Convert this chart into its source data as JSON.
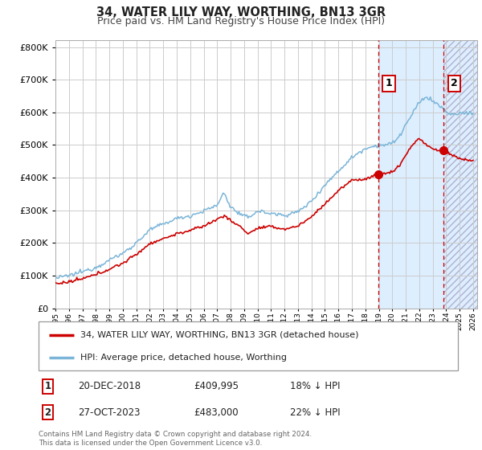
{
  "title": "34, WATER LILY WAY, WORTHING, BN13 3GR",
  "subtitle": "Price paid vs. HM Land Registry's House Price Index (HPI)",
  "hpi_label": "HPI: Average price, detached house, Worthing",
  "property_label": "34, WATER LILY WAY, WORTHING, BN13 3GR (detached house)",
  "annotation1": {
    "num": "1",
    "date": "20-DEC-2018",
    "price": "£409,995",
    "pct": "18% ↓ HPI",
    "x_year": 2018.97,
    "y_val": 409995
  },
  "annotation2": {
    "num": "2",
    "date": "27-OCT-2023",
    "price": "£483,000",
    "pct": "22% ↓ HPI",
    "x_year": 2023.82,
    "y_val": 483000
  },
  "hpi_color": "#7ab5d8",
  "property_color": "#cc0000",
  "dot_color": "#cc0000",
  "vline_color": "#cc0000",
  "shade_color": "#ddeeff",
  "grid_color": "#cccccc",
  "background_color": "#ffffff",
  "ylim": [
    0,
    820000
  ],
  "yticks": [
    0,
    100000,
    200000,
    300000,
    400000,
    500000,
    600000,
    700000,
    800000
  ],
  "xlim_start": 1995,
  "xlim_end": 2026.3,
  "footer": "Contains HM Land Registry data © Crown copyright and database right 2024.\nThis data is licensed under the Open Government Licence v3.0.",
  "hpi_anchors_x": [
    1995,
    1996,
    1997,
    1998,
    1999,
    2000,
    2001,
    2002,
    2003,
    2004,
    2005,
    2006,
    2007,
    2007.5,
    2008,
    2008.8,
    2009.3,
    2010,
    2011,
    2012,
    2013,
    2014,
    2015,
    2016,
    2017,
    2018,
    2018.97,
    2019.5,
    2020,
    2020.5,
    2021,
    2021.5,
    2022,
    2022.5,
    2023,
    2023.5,
    2024,
    2024.5,
    2025,
    2026
  ],
  "hpi_anchors_y": [
    92000,
    100000,
    112000,
    125000,
    148000,
    168000,
    200000,
    240000,
    258000,
    275000,
    283000,
    298000,
    315000,
    355000,
    310000,
    285000,
    278000,
    298000,
    290000,
    285000,
    295000,
    328000,
    378000,
    420000,
    462000,
    490000,
    500000,
    500000,
    505000,
    525000,
    562000,
    595000,
    630000,
    648000,
    635000,
    620000,
    602000,
    592000,
    597000,
    600000
  ],
  "prop_anchors_x": [
    1995,
    1996,
    1997,
    1998,
    1999,
    2000,
    2001,
    2002,
    2003,
    2004,
    2005,
    2006,
    2007,
    2007.5,
    2008,
    2008.8,
    2009.3,
    2010,
    2011,
    2012,
    2013,
    2014,
    2015,
    2016,
    2017,
    2018,
    2018.97,
    2019,
    2019.5,
    2020,
    2020.5,
    2021,
    2021.5,
    2022,
    2022.3,
    2022.6,
    2023,
    2023.5,
    2023.82,
    2024,
    2024.5,
    2025,
    2026
  ],
  "prop_anchors_y": [
    75000,
    80000,
    90000,
    103000,
    120000,
    138000,
    165000,
    198000,
    213000,
    228000,
    238000,
    252000,
    272000,
    285000,
    268000,
    248000,
    228000,
    245000,
    250000,
    242000,
    252000,
    280000,
    320000,
    360000,
    392000,
    396000,
    409995,
    412000,
    412000,
    418000,
    435000,
    470000,
    500000,
    522000,
    508000,
    498000,
    488000,
    482000,
    483000,
    477000,
    468000,
    458000,
    452000
  ]
}
